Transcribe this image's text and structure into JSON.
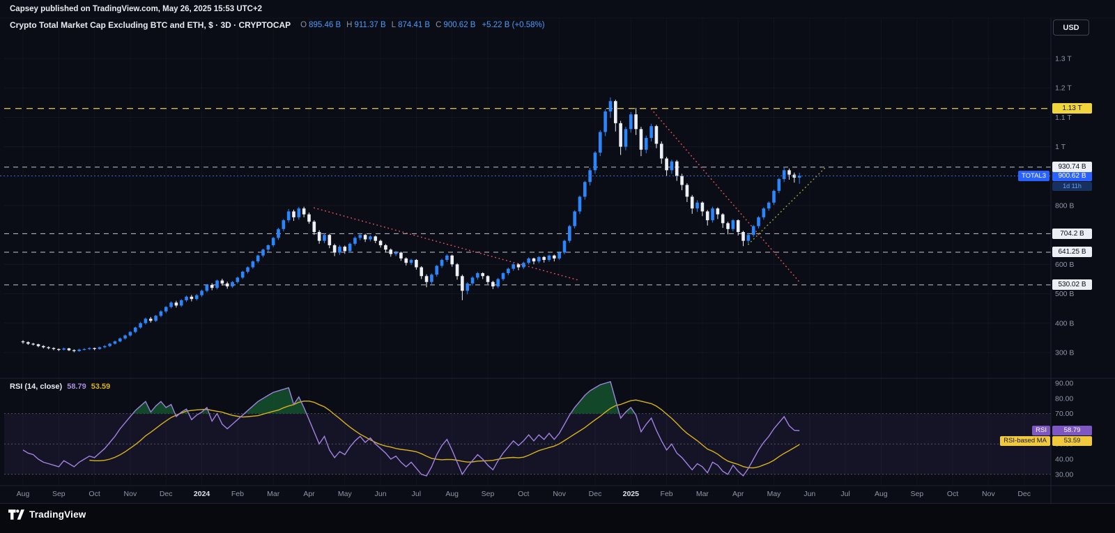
{
  "publish_bar": {
    "text": "Capsey published on TradingView.com, May 26, 2025 15:53 UTC+2"
  },
  "header": {
    "title": "Crypto Total Market Cap Excluding BTC and ETH, $ · 3D · CRYPTOCAP",
    "ohlc": {
      "o_label": "O",
      "o": "895.46 B",
      "h_label": "H",
      "h": "911.37 B",
      "l_label": "L",
      "l": "874.41 B",
      "c_label": "C",
      "c": "900.62 B",
      "change": "+5.22 B (+0.58%)"
    }
  },
  "toolbar": {
    "currency_button": "USD"
  },
  "price_axis": {
    "ticks": [
      {
        "label": "1.3 T",
        "value": 1300
      },
      {
        "label": "1.2 T",
        "value": 1200
      },
      {
        "label": "1.1 T",
        "value": 1100
      },
      {
        "label": "1 T",
        "value": 1000
      },
      {
        "label": "800 B",
        "value": 800
      },
      {
        "label": "600 B",
        "value": 600
      },
      {
        "label": "500 B",
        "value": 500
      },
      {
        "label": "400 B",
        "value": 400
      },
      {
        "label": "300 B",
        "value": 300
      }
    ]
  },
  "time_axis": {
    "labels": [
      {
        "text": "Aug"
      },
      {
        "text": "Sep"
      },
      {
        "text": "Oct"
      },
      {
        "text": "Nov"
      },
      {
        "text": "Dec"
      },
      {
        "text": "2024",
        "year": true
      },
      {
        "text": "Feb"
      },
      {
        "text": "Mar"
      },
      {
        "text": "Apr"
      },
      {
        "text": "May"
      },
      {
        "text": "Jun"
      },
      {
        "text": "Jul"
      },
      {
        "text": "Aug"
      },
      {
        "text": "Sep"
      },
      {
        "text": "Oct"
      },
      {
        "text": "Nov"
      },
      {
        "text": "Dec"
      },
      {
        "text": "2025",
        "year": true
      },
      {
        "text": "Feb"
      },
      {
        "text": "Mar"
      },
      {
        "text": "Apr"
      },
      {
        "text": "May"
      },
      {
        "text": "Jun"
      },
      {
        "text": "Jul"
      },
      {
        "text": "Aug"
      },
      {
        "text": "Sep"
      },
      {
        "text": "Oct"
      },
      {
        "text": "Nov"
      },
      {
        "text": "Dec"
      }
    ]
  },
  "rsi_pane": {
    "title": "RSI (14, close)",
    "rsi_value": "58.79",
    "ma_value": "53.59",
    "badge_rsi": {
      "name": "RSI",
      "value": "58.79"
    },
    "badge_ma": {
      "name": "RSI-based MA",
      "value": "53.59"
    },
    "axis_ticks": [
      {
        "label": "90.00",
        "value": 90
      },
      {
        "label": "80.00",
        "value": 80
      },
      {
        "label": "70.00",
        "value": 70
      },
      {
        "label": "60.00",
        "value": 60
      },
      {
        "label": "50.00",
        "value": 50
      },
      {
        "label": "40.00",
        "value": 40
      },
      {
        "label": "30.00",
        "value": 30
      }
    ]
  },
  "footer": {
    "logo_text": "TradingView"
  },
  "chart_data": {
    "type": "candlestick",
    "title": "Crypto Total Market Cap Excluding BTC and ETH",
    "symbol": "CRYPTOCAP:TOTAL3",
    "interval": "3D",
    "unit": "billions USD",
    "ylim": [
      220,
      1430
    ],
    "x_range": [
      "Aug 2023",
      "Dec 2025"
    ],
    "current": {
      "value": 900.62,
      "label": "900.62 B",
      "symbol": "TOTAL3",
      "countdown": "1d 11h"
    },
    "levels": [
      {
        "value": 1130,
        "label": "1.13 T",
        "style": "yellow"
      },
      {
        "value": 930.74,
        "label": "930.74 B",
        "style": "white"
      },
      {
        "value": 704.2,
        "label": "704.2 B",
        "style": "white"
      },
      {
        "value": 641.25,
        "label": "641.25 B",
        "style": "white"
      },
      {
        "value": 530.02,
        "label": "530.02 B",
        "style": "white"
      }
    ],
    "trendlines": [
      {
        "from": {
          "i": 57,
          "p": 792
        },
        "to": {
          "i": 109,
          "p": 545
        },
        "color": "#d94f5c"
      },
      {
        "from": {
          "i": 123,
          "p": 1128
        },
        "to": {
          "i": 152,
          "p": 540
        },
        "color": "#d94f5c"
      },
      {
        "from": {
          "i": 142,
          "p": 668
        },
        "to": {
          "i": 157,
          "p": 928
        },
        "color": "#9c9c3a"
      }
    ],
    "candles": [
      [
        338,
        342,
        330,
        335
      ],
      [
        335,
        338,
        326,
        330
      ],
      [
        330,
        333,
        324,
        328
      ],
      [
        328,
        330,
        318,
        322
      ],
      [
        322,
        325,
        314,
        318
      ],
      [
        318,
        321,
        311,
        315
      ],
      [
        315,
        318,
        308,
        312
      ],
      [
        312,
        314,
        305,
        310
      ],
      [
        310,
        317,
        307,
        314
      ],
      [
        314,
        316,
        305,
        308
      ],
      [
        308,
        311,
        301,
        305
      ],
      [
        305,
        313,
        303,
        310
      ],
      [
        310,
        315,
        307,
        312
      ],
      [
        312,
        318,
        309,
        315
      ],
      [
        315,
        317,
        308,
        312
      ],
      [
        312,
        320,
        310,
        318
      ],
      [
        318,
        325,
        315,
        322
      ],
      [
        322,
        333,
        319,
        330
      ],
      [
        330,
        341,
        327,
        338
      ],
      [
        338,
        351,
        335,
        348
      ],
      [
        348,
        361,
        344,
        358
      ],
      [
        358,
        373,
        354,
        370
      ],
      [
        370,
        388,
        366,
        385
      ],
      [
        385,
        404,
        381,
        400
      ],
      [
        400,
        419,
        395,
        415
      ],
      [
        415,
        421,
        402,
        408
      ],
      [
        408,
        428,
        404,
        425
      ],
      [
        425,
        444,
        420,
        440
      ],
      [
        440,
        458,
        434,
        455
      ],
      [
        455,
        474,
        450,
        470
      ],
      [
        470,
        476,
        453,
        460
      ],
      [
        460,
        481,
        455,
        478
      ],
      [
        478,
        494,
        472,
        490
      ],
      [
        490,
        496,
        474,
        482
      ],
      [
        482,
        499,
        477,
        495
      ],
      [
        495,
        514,
        489,
        510
      ],
      [
        510,
        533,
        505,
        530
      ],
      [
        530,
        536,
        512,
        520
      ],
      [
        520,
        548,
        515,
        545
      ],
      [
        545,
        551,
        528,
        535
      ],
      [
        535,
        541,
        517,
        525
      ],
      [
        525,
        543,
        520,
        540
      ],
      [
        540,
        558,
        535,
        555
      ],
      [
        555,
        578,
        550,
        575
      ],
      [
        575,
        593,
        569,
        590
      ],
      [
        590,
        613,
        585,
        610
      ],
      [
        610,
        633,
        604,
        630
      ],
      [
        630,
        653,
        624,
        650
      ],
      [
        650,
        668,
        642,
        665
      ],
      [
        665,
        693,
        659,
        690
      ],
      [
        690,
        724,
        683,
        720
      ],
      [
        720,
        754,
        712,
        750
      ],
      [
        750,
        788,
        742,
        780
      ],
      [
        780,
        786,
        748,
        760
      ],
      [
        760,
        795,
        752,
        790
      ],
      [
        790,
        796,
        760,
        770
      ],
      [
        770,
        776,
        738,
        745
      ],
      [
        745,
        750,
        700,
        710
      ],
      [
        710,
        716,
        670,
        680
      ],
      [
        680,
        705,
        672,
        700
      ],
      [
        700,
        704,
        655,
        665
      ],
      [
        665,
        670,
        628,
        640
      ],
      [
        640,
        666,
        632,
        660
      ],
      [
        660,
        664,
        636,
        645
      ],
      [
        645,
        674,
        640,
        670
      ],
      [
        670,
        695,
        664,
        690
      ],
      [
        690,
        706,
        682,
        700
      ],
      [
        700,
        704,
        676,
        685
      ],
      [
        685,
        699,
        678,
        695
      ],
      [
        695,
        698,
        672,
        680
      ],
      [
        680,
        684,
        657,
        665
      ],
      [
        665,
        669,
        642,
        650
      ],
      [
        650,
        654,
        626,
        635
      ],
      [
        635,
        646,
        628,
        640
      ],
      [
        640,
        643,
        612,
        620
      ],
      [
        620,
        624,
        596,
        605
      ],
      [
        605,
        619,
        598,
        615
      ],
      [
        615,
        618,
        582,
        590
      ],
      [
        590,
        594,
        550,
        560
      ],
      [
        560,
        566,
        522,
        540
      ],
      [
        540,
        569,
        533,
        565
      ],
      [
        565,
        598,
        558,
        595
      ],
      [
        595,
        619,
        588,
        615
      ],
      [
        615,
        634,
        608,
        630
      ],
      [
        630,
        633,
        592,
        600
      ],
      [
        600,
        604,
        548,
        560
      ],
      [
        560,
        565,
        478,
        510
      ],
      [
        510,
        539,
        498,
        535
      ],
      [
        535,
        559,
        528,
        555
      ],
      [
        555,
        574,
        548,
        570
      ],
      [
        570,
        573,
        550,
        560
      ],
      [
        560,
        563,
        532,
        540
      ],
      [
        540,
        544,
        516,
        525
      ],
      [
        525,
        554,
        519,
        550
      ],
      [
        550,
        573,
        544,
        570
      ],
      [
        570,
        589,
        563,
        585
      ],
      [
        585,
        604,
        578,
        600
      ],
      [
        600,
        603,
        580,
        590
      ],
      [
        590,
        609,
        584,
        605
      ],
      [
        605,
        624,
        599,
        620
      ],
      [
        620,
        623,
        600,
        610
      ],
      [
        610,
        628,
        604,
        625
      ],
      [
        625,
        628,
        606,
        615
      ],
      [
        615,
        633,
        609,
        630
      ],
      [
        630,
        633,
        610,
        620
      ],
      [
        620,
        644,
        615,
        640
      ],
      [
        640,
        684,
        634,
        680
      ],
      [
        680,
        734,
        673,
        730
      ],
      [
        730,
        784,
        722,
        780
      ],
      [
        780,
        834,
        771,
        830
      ],
      [
        830,
        884,
        820,
        880
      ],
      [
        880,
        928,
        868,
        920
      ],
      [
        920,
        985,
        908,
        980
      ],
      [
        980,
        1056,
        968,
        1050
      ],
      [
        1050,
        1128,
        1036,
        1120
      ],
      [
        1120,
        1168,
        1098,
        1155
      ],
      [
        1155,
        1160,
        1052,
        1080
      ],
      [
        1080,
        1088,
        972,
        1000
      ],
      [
        1000,
        1068,
        988,
        1060
      ],
      [
        1060,
        1118,
        1048,
        1110
      ],
      [
        1110,
        1132,
        1040,
        1060
      ],
      [
        1060,
        1068,
        968,
        990
      ],
      [
        990,
        1038,
        978,
        1030
      ],
      [
        1030,
        1078,
        1018,
        1070
      ],
      [
        1070,
        1075,
        995,
        1010
      ],
      [
        1010,
        1018,
        942,
        960
      ],
      [
        960,
        966,
        900,
        920
      ],
      [
        920,
        956,
        908,
        950
      ],
      [
        950,
        955,
        884,
        900
      ],
      [
        900,
        908,
        852,
        870
      ],
      [
        870,
        876,
        812,
        830
      ],
      [
        830,
        836,
        772,
        790
      ],
      [
        790,
        818,
        778,
        810
      ],
      [
        810,
        814,
        764,
        780
      ],
      [
        780,
        785,
        732,
        750
      ],
      [
        750,
        796,
        742,
        790
      ],
      [
        790,
        794,
        754,
        770
      ],
      [
        770,
        774,
        724,
        740
      ],
      [
        740,
        745,
        702,
        720
      ],
      [
        720,
        754,
        712,
        750
      ],
      [
        750,
        753,
        698,
        710
      ],
      [
        710,
        714,
        662,
        680
      ],
      [
        680,
        706,
        672,
        700
      ],
      [
        700,
        734,
        693,
        730
      ],
      [
        730,
        764,
        722,
        760
      ],
      [
        760,
        794,
        752,
        790
      ],
      [
        790,
        814,
        782,
        810
      ],
      [
        810,
        854,
        802,
        850
      ],
      [
        850,
        894,
        842,
        890
      ],
      [
        890,
        932,
        880,
        920
      ],
      [
        920,
        926,
        888,
        905
      ],
      [
        905,
        912,
        878,
        895
      ],
      [
        895,
        911,
        874,
        901
      ]
    ],
    "rsi": {
      "length": 14,
      "source": "close",
      "last": 58.79,
      "ma_last": 53.59,
      "bands": [
        70,
        50,
        30
      ],
      "values": [
        46,
        44,
        43,
        40,
        38,
        37,
        36,
        35,
        39,
        37,
        35,
        38,
        40,
        42,
        41,
        44,
        47,
        51,
        55,
        60,
        64,
        68,
        72,
        75,
        78,
        71,
        75,
        78,
        74,
        76,
        68,
        71,
        73,
        66,
        69,
        71,
        74,
        65,
        70,
        63,
        60,
        63,
        66,
        69,
        72,
        75,
        78,
        80,
        82,
        84,
        85,
        86,
        87,
        76,
        81,
        74,
        66,
        58,
        50,
        55,
        46,
        41,
        45,
        43,
        48,
        52,
        55,
        51,
        54,
        50,
        47,
        44,
        40,
        42,
        38,
        35,
        38,
        34,
        30,
        29,
        35,
        43,
        49,
        53,
        46,
        38,
        30,
        35,
        39,
        43,
        40,
        36,
        33,
        39,
        44,
        48,
        52,
        49,
        52,
        56,
        52,
        56,
        53,
        57,
        53,
        57,
        63,
        69,
        74,
        78,
        82,
        85,
        87,
        89,
        90,
        91,
        79,
        67,
        71,
        74,
        69,
        58,
        63,
        67,
        59,
        52,
        46,
        50,
        44,
        41,
        37,
        33,
        37,
        35,
        31,
        38,
        36,
        32,
        30,
        36,
        32,
        29,
        34,
        40,
        46,
        51,
        55,
        60,
        64,
        68,
        62,
        59,
        58.79
      ]
    }
  }
}
